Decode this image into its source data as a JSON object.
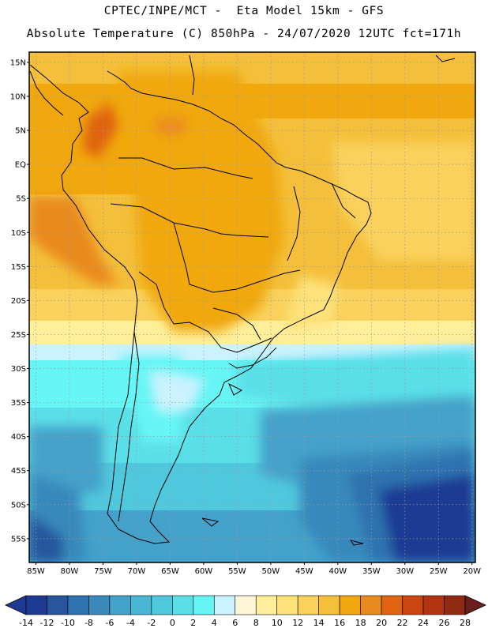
{
  "header": {
    "line1": "CPTEC/INPE/MCT -  Eta Model 15km - GFS",
    "line2": "Absolute Temperature (C) 850hPa - 24/07/2020 12UTC fct=171h"
  },
  "map": {
    "lat_labels": [
      "15N",
      "10N",
      "5N",
      "EQ",
      "5S",
      "10S",
      "15S",
      "20S",
      "25S",
      "30S",
      "35S",
      "40S",
      "45S",
      "50S",
      "55S"
    ],
    "lon_labels": [
      "85W",
      "80W",
      "75W",
      "70W",
      "65W",
      "60W",
      "55W",
      "50W",
      "45W",
      "40W",
      "35W",
      "30W",
      "25W",
      "20W"
    ],
    "lat_values": [
      15,
      10,
      5,
      0,
      -5,
      -10,
      -15,
      -20,
      -25,
      -30,
      -35,
      -40,
      -45,
      -50,
      -55
    ],
    "lon_values": [
      -85,
      -80,
      -75,
      -70,
      -65,
      -60,
      -55,
      -50,
      -45,
      -40,
      -35,
      -30,
      -25,
      -20
    ],
    "extent": {
      "lon_min": -86,
      "lon_max": -19.5,
      "lat_min": -58.5,
      "lat_max": 16.5
    },
    "gridlines": true
  },
  "colorbar": {
    "labels": [
      "-14",
      "-12",
      "-10",
      "-8",
      "-6",
      "-4",
      "-2",
      "0",
      "2",
      "4",
      "6",
      "8",
      "10",
      "12",
      "14",
      "16",
      "18",
      "20",
      "22",
      "24",
      "26",
      "28"
    ],
    "colors": [
      "#1f3a93",
      "#28569d",
      "#2f72b0",
      "#3989bb",
      "#44a1c9",
      "#49b6d4",
      "#4fc8dd",
      "#5adfe8",
      "#66f5f5",
      "#ccf2ff",
      "#fff6d8",
      "#ffee9a",
      "#fde27a",
      "#f9d15c",
      "#f4bf3a",
      "#f0a80e",
      "#e98a1f",
      "#e06411",
      "#cc4410",
      "#b23510",
      "#912a12"
    ],
    "under_color": "#1f3a93",
    "over_color": "#6b1e1e"
  }
}
